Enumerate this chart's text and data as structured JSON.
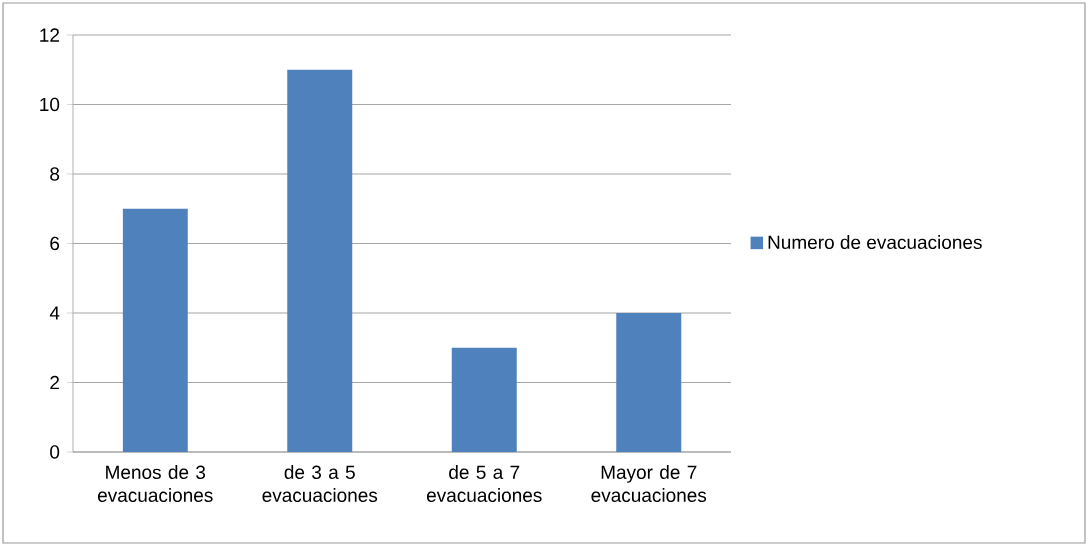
{
  "chart_data": {
    "type": "bar",
    "categories": [
      "Menos de 3 evacuaciones",
      "de 3 a 5 evacuaciones",
      "de 5 a 7 evacuaciones",
      "Mayor de 7 evacuaciones"
    ],
    "series": [
      {
        "name": "Numero de evacuaciones",
        "color": "#4f81bd",
        "values": [
          7,
          11,
          3,
          4
        ]
      }
    ],
    "ylim": [
      0,
      12
    ],
    "yticks": [
      0,
      2,
      4,
      6,
      8,
      10,
      12
    ],
    "grid": "y",
    "legend": "right"
  }
}
